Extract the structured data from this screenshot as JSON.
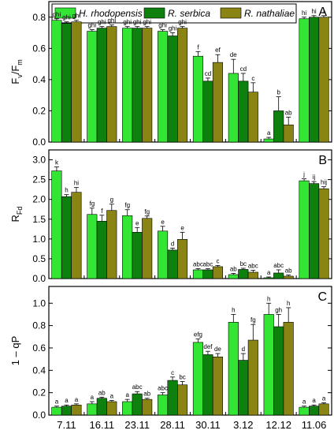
{
  "chart_data": {
    "type": "bar",
    "categories": [
      "7.11",
      "16.11",
      "23.11",
      "28.11",
      "30.11",
      "3.12",
      "12.12",
      "11.06"
    ],
    "legend": {
      "placement": "top",
      "entries": [
        {
          "name": "H. rhodopensis",
          "color": "#33e633"
        },
        {
          "name": "R. serbica",
          "color": "#0d800d"
        },
        {
          "name": "R. nathaliae",
          "color": "#8a8414"
        }
      ]
    },
    "panels": [
      {
        "letter": "A",
        "ylabel_main": "F",
        "ylabel_sub1": "v",
        "ylabel_mid": "/F",
        "ylabel_sub2": "m",
        "ylim": [
          0,
          0.9
        ],
        "yticks": [
          0.0,
          0.2,
          0.4,
          0.6,
          0.8
        ],
        "ytick_labels": [
          "0.0",
          "0.2",
          "0.4",
          "0.6",
          "0.8"
        ],
        "series": [
          {
            "name": "H. rhodopensis",
            "values": [
              0.78,
              0.71,
              0.73,
              0.71,
              0.55,
              0.44,
              0.02,
              0.79
            ],
            "errors": [
              0.01,
              0.01,
              0.01,
              0.01,
              0.03,
              0.09,
              0.01,
              0.01
            ],
            "labels": [
              "ghi",
              "ghi",
              "ghi",
              "ghi",
              "f",
              "de",
              "a",
              "hi"
            ]
          },
          {
            "name": "R. serbica",
            "values": [
              0.76,
              0.73,
              0.73,
              0.68,
              0.39,
              0.39,
              0.2,
              0.8
            ],
            "errors": [
              0.01,
              0.01,
              0.01,
              0.02,
              0.02,
              0.05,
              0.09,
              0.01
            ],
            "labels": [
              "ghi",
              "ghi",
              "ghi",
              "ghi",
              "cd",
              "cd",
              "b",
              "hi"
            ]
          },
          {
            "name": "R. nathaliae",
            "values": [
              0.77,
              0.74,
              0.73,
              0.73,
              0.51,
              0.32,
              0.11,
              0.8
            ],
            "errors": [
              0.01,
              0.01,
              0.01,
              0.01,
              0.05,
              0.06,
              0.05,
              0.01
            ],
            "labels": [
              "ghi",
              "ghi",
              "ghi",
              "ghi",
              "ef",
              "c",
              "ab",
              "i"
            ]
          }
        ]
      },
      {
        "letter": "B",
        "ylabel_main": "R",
        "ylabel_sub1": "Fd",
        "ylabel_mid": "",
        "ylabel_sub2": "",
        "ylim": [
          0,
          3.25
        ],
        "yticks": [
          0.0,
          0.5,
          1.0,
          1.5,
          2.0,
          2.5,
          3.0
        ],
        "ytick_labels": [
          "0.0",
          "0.5",
          "1.0",
          "1.5",
          "2.0",
          "2.5",
          "3.0"
        ],
        "series": [
          {
            "name": "H. rhodopensis",
            "values": [
              2.72,
              1.62,
              1.59,
              1.2,
              0.22,
              0.1,
              0.02,
              2.47
            ],
            "errors": [
              0.1,
              0.16,
              0.15,
              0.12,
              0.03,
              0.03,
              0.02,
              0.05
            ],
            "labels": [
              "k",
              "fg",
              "fg",
              "e",
              "abc",
              "ab",
              "a",
              "j"
            ]
          },
          {
            "name": "R. serbica",
            "values": [
              2.07,
              1.45,
              1.17,
              0.72,
              0.22,
              0.23,
              0.14,
              2.4
            ],
            "errors": [
              0.05,
              0.15,
              0.12,
              0.05,
              0.03,
              0.03,
              0.08,
              0.05
            ],
            "labels": [
              "h",
              "f",
              "e",
              "d",
              "abc",
              "bc",
              "abc",
              "ij"
            ]
          },
          {
            "name": "R. nathaliae",
            "values": [
              2.18,
              1.72,
              1.52,
              0.99,
              0.3,
              0.16,
              0.06,
              2.27
            ],
            "errors": [
              0.12,
              0.16,
              0.06,
              0.18,
              0.03,
              0.05,
              0.03,
              0.05
            ],
            "labels": [
              "hi",
              "g",
              "fg",
              "e",
              "c",
              "abc",
              "ab",
              "hij"
            ]
          }
        ]
      },
      {
        "letter": "C",
        "ylabel_main": "1 – qP",
        "ylabel_sub1": "",
        "ylabel_mid": "",
        "ylabel_sub2": "",
        "ylim": [
          0,
          1.15
        ],
        "yticks": [
          0.0,
          0.2,
          0.4,
          0.6,
          0.8,
          1.0
        ],
        "ytick_labels": [
          "0.0",
          "0.2",
          "0.4",
          "0.6",
          "0.8",
          "1.0"
        ],
        "series": [
          {
            "name": "H. rhodopensis",
            "values": [
              0.07,
              0.1,
              0.12,
              0.18,
              0.65,
              0.83,
              0.9,
              0.07
            ],
            "errors": [
              0.01,
              0.02,
              0.02,
              0.02,
              0.03,
              0.07,
              0.1,
              0.01
            ],
            "labels": [
              "a",
              "a",
              "a",
              "abc",
              "efg",
              "h",
              "h",
              "a"
            ]
          },
          {
            "name": "R. serbica",
            "values": [
              0.08,
              0.15,
              0.19,
              0.31,
              0.54,
              0.49,
              0.79,
              0.08
            ],
            "errors": [
              0.01,
              0.01,
              0.02,
              0.03,
              0.03,
              0.06,
              0.11,
              0.01
            ],
            "labels": [
              "a",
              "ab",
              "abc",
              "c",
              "def",
              "d",
              "gh",
              "a"
            ]
          },
          {
            "name": "R. nathaliae",
            "values": [
              0.09,
              0.12,
              0.14,
              0.27,
              0.52,
              0.67,
              0.83,
              0.1
            ],
            "errors": [
              0.01,
              0.01,
              0.01,
              0.03,
              0.03,
              0.14,
              0.13,
              0.01
            ],
            "labels": [
              "a",
              "a",
              "ab",
              "bc",
              "de",
              "fg",
              "h",
              "a"
            ]
          }
        ]
      }
    ]
  }
}
